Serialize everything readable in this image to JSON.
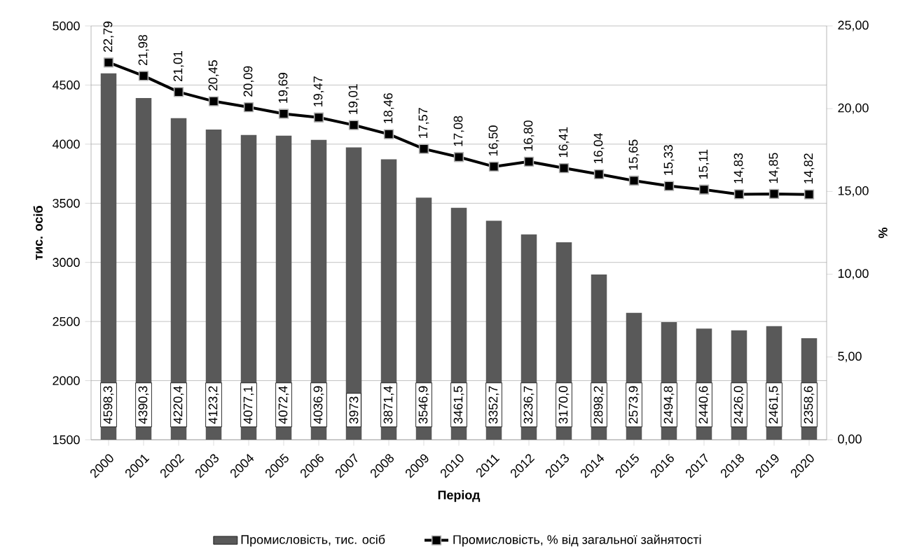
{
  "chart_data": {
    "type": "bar",
    "xlabel": "Період",
    "ylabel": "тис. осіб",
    "y2label": "%",
    "categories": [
      "2000",
      "2001",
      "2002",
      "2003",
      "2004",
      "2005",
      "2006",
      "2007",
      "2008",
      "2009",
      "2010",
      "2011",
      "2012",
      "2013",
      "2014",
      "2015",
      "2016",
      "2017",
      "2018",
      "2019",
      "2020"
    ],
    "series": [
      {
        "name": "Промисловість, тис. осіб",
        "color": "#595959",
        "values": [
          4598.3,
          4390.3,
          4220.4,
          4123.2,
          4077.1,
          4072.4,
          4036.9,
          3973,
          3871.4,
          3546.9,
          3461.5,
          3352.7,
          3236.7,
          3170.0,
          2898.2,
          2573.9,
          2494.8,
          2440.6,
          2426.0,
          2461.5,
          2358.6
        ],
        "value_labels": [
          "4598,3",
          "4390,3",
          "4220,4",
          "4123,2",
          "4077,1",
          "4072,4",
          "4036,9",
          "3973",
          "3871,4",
          "3546,9",
          "3461,5",
          "3352,7",
          "3236,7",
          "3170,0",
          "2898,2",
          "2573,9",
          "2494,8",
          "2440,6",
          "2426,0",
          "2461,5",
          "2358,6"
        ]
      },
      {
        "name": "Промисловість, % від загальної зайнятості",
        "type": "line",
        "axis": "y2",
        "color": "#000000",
        "values": [
          22.79,
          21.98,
          21.01,
          20.45,
          20.09,
          19.69,
          19.47,
          19.01,
          18.46,
          17.57,
          17.08,
          16.5,
          16.8,
          16.41,
          16.04,
          15.65,
          15.33,
          15.11,
          14.83,
          14.85,
          14.82
        ],
        "value_labels": [
          "22,79",
          "21,98",
          "21,01",
          "20,45",
          "20,09",
          "19,69",
          "19,47",
          "19,01",
          "18,46",
          "17,57",
          "17,08",
          "16,50",
          "16,80",
          "16,41",
          "16,04",
          "15,65",
          "15,33",
          "15,11",
          "14,83",
          "14,85",
          "14,82"
        ]
      }
    ],
    "ylim": [
      1500,
      5000
    ],
    "yticks": [
      1500,
      2000,
      2500,
      3000,
      3500,
      4000,
      4500,
      5000
    ],
    "y2lim": [
      0,
      25
    ],
    "y2ticks": [
      {
        "value": 0,
        "label": "0,00"
      },
      {
        "value": 5,
        "label": "5,00"
      },
      {
        "value": 10,
        "label": "10,00"
      },
      {
        "value": 15,
        "label": "15,00"
      },
      {
        "value": 20,
        "label": "20,00"
      },
      {
        "value": 25,
        "label": "25,00"
      }
    ],
    "grid": "y",
    "legend": "bottom",
    "marker": "square"
  }
}
